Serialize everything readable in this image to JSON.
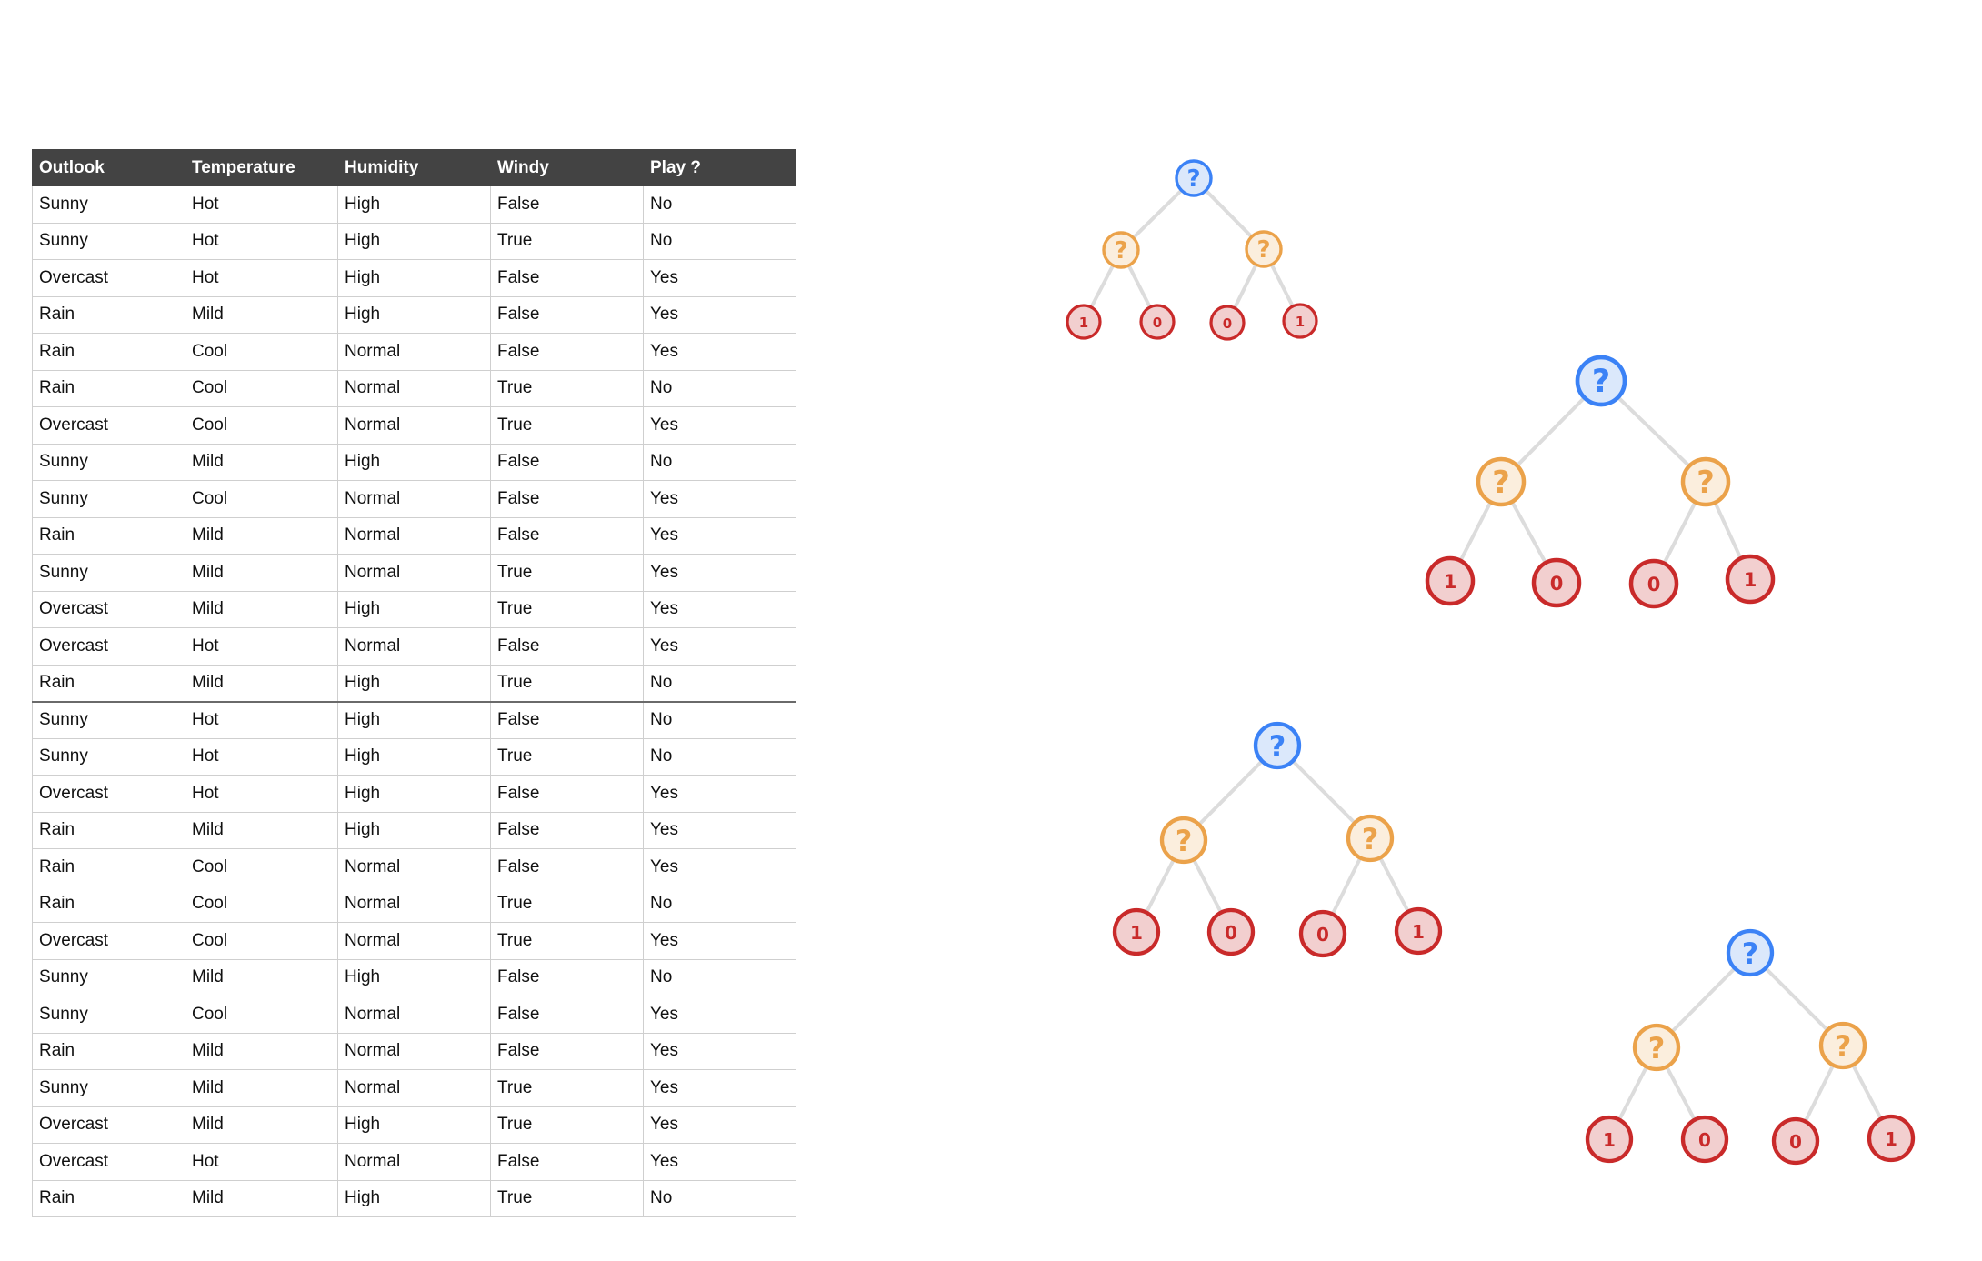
{
  "table": {
    "headers": [
      "Outlook",
      "Temperature",
      "Humidity",
      "Windy",
      "Play ?"
    ],
    "rows": [
      [
        "Sunny",
        "Hot",
        "High",
        "False",
        "No"
      ],
      [
        "Sunny",
        "Hot",
        "High",
        "True",
        "No"
      ],
      [
        "Overcast",
        "Hot",
        "High",
        "False",
        "Yes"
      ],
      [
        "Rain",
        "Mild",
        "High",
        "False",
        "Yes"
      ],
      [
        "Rain",
        "Cool",
        "Normal",
        "False",
        "Yes"
      ],
      [
        "Rain",
        "Cool",
        "Normal",
        "True",
        "No"
      ],
      [
        "Overcast",
        "Cool",
        "Normal",
        "True",
        "Yes"
      ],
      [
        "Sunny",
        "Mild",
        "High",
        "False",
        "No"
      ],
      [
        "Sunny",
        "Cool",
        "Normal",
        "False",
        "Yes"
      ],
      [
        "Rain",
        "Mild",
        "Normal",
        "False",
        "Yes"
      ],
      [
        "Sunny",
        "Mild",
        "Normal",
        "True",
        "Yes"
      ],
      [
        "Overcast",
        "Mild",
        "High",
        "True",
        "Yes"
      ],
      [
        "Overcast",
        "Hot",
        "Normal",
        "False",
        "Yes"
      ],
      [
        "Rain",
        "Mild",
        "High",
        "True",
        "No"
      ],
      [
        "Sunny",
        "Hot",
        "High",
        "False",
        "No"
      ],
      [
        "Sunny",
        "Hot",
        "High",
        "True",
        "No"
      ],
      [
        "Overcast",
        "Hot",
        "High",
        "False",
        "Yes"
      ],
      [
        "Rain",
        "Mild",
        "High",
        "False",
        "Yes"
      ],
      [
        "Rain",
        "Cool",
        "Normal",
        "False",
        "Yes"
      ],
      [
        "Rain",
        "Cool",
        "Normal",
        "True",
        "No"
      ],
      [
        "Overcast",
        "Cool",
        "Normal",
        "True",
        "Yes"
      ],
      [
        "Sunny",
        "Mild",
        "High",
        "False",
        "No"
      ],
      [
        "Sunny",
        "Cool",
        "Normal",
        "False",
        "Yes"
      ],
      [
        "Rain",
        "Mild",
        "Normal",
        "False",
        "Yes"
      ],
      [
        "Sunny",
        "Mild",
        "Normal",
        "True",
        "Yes"
      ],
      [
        "Overcast",
        "Mild",
        "High",
        "True",
        "Yes"
      ],
      [
        "Overcast",
        "Hot",
        "Normal",
        "False",
        "Yes"
      ],
      [
        "Rain",
        "Mild",
        "High",
        "True",
        "No"
      ]
    ]
  },
  "trees": [
    {
      "root": "?",
      "splits": [
        "?",
        "?"
      ],
      "leaves": [
        "1",
        "0",
        "0",
        "1"
      ]
    },
    {
      "root": "?",
      "splits": [
        "?",
        "?"
      ],
      "leaves": [
        "1",
        "0",
        "0",
        "1"
      ]
    },
    {
      "root": "?",
      "splits": [
        "?",
        "?"
      ],
      "leaves": [
        "1",
        "0",
        "0",
        "1"
      ]
    },
    {
      "root": "?",
      "splits": [
        "?",
        "?"
      ],
      "leaves": [
        "1",
        "0",
        "0",
        "1"
      ]
    }
  ],
  "colors": {
    "header_bg": "#434343",
    "root_stroke": "#3b82f6",
    "root_fill": "#dbe8fb",
    "split_stroke": "#eba24a",
    "split_fill": "#fbeedd",
    "leaf_stroke": "#c92a2a",
    "leaf_fill": "#f2cfcf",
    "edge": "#dcdcdc"
  }
}
